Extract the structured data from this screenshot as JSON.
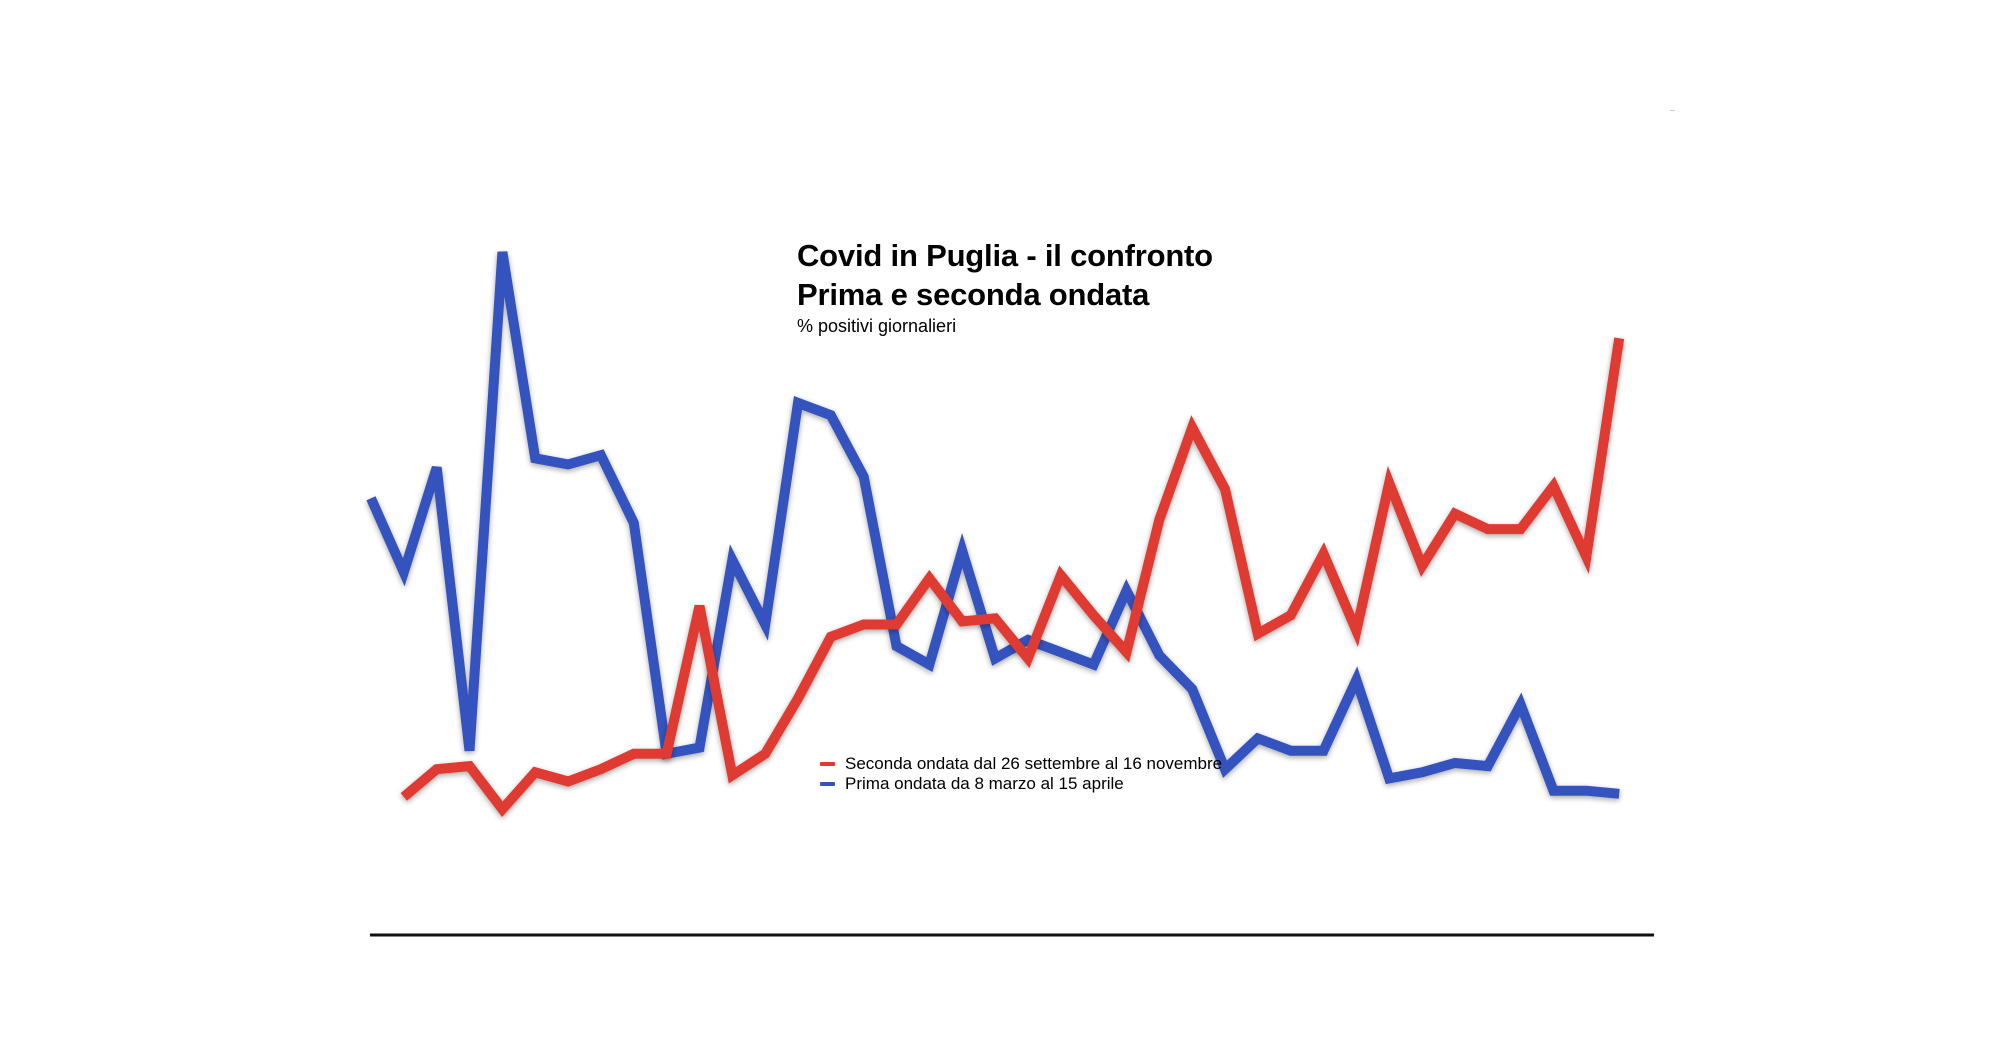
{
  "chart_data": {
    "type": "line",
    "title": "Covid in Puglia - il confronto",
    "title_line2": "Prima e seconda ondata",
    "subtitle": "% positivi giornalieri",
    "xlabel": "",
    "ylabel": "",
    "grid": false,
    "legend_position": "center-bottom",
    "x": [
      1,
      2,
      3,
      4,
      5,
      6,
      7,
      8,
      9,
      10,
      11,
      12,
      13,
      14,
      15,
      16,
      17,
      18,
      19,
      20,
      21,
      22,
      23,
      24,
      25,
      26,
      27,
      28,
      29,
      30,
      31,
      32,
      33,
      34,
      35,
      36,
      37,
      38,
      39,
      40
    ],
    "ylim": [
      0,
      23
    ],
    "series": [
      {
        "name": "Seconda ondata dal 26 settembre al 16 novembre",
        "color": "#e03a30",
        "values": [
          null,
          2.7,
          3.6,
          3.7,
          2.3,
          3.5,
          3.2,
          3.6,
          4.1,
          4.1,
          8.9,
          3.4,
          4.1,
          5.9,
          7.9,
          8.3,
          8.3,
          9.8,
          8.4,
          8.5,
          7.2,
          9.9,
          8.6,
          7.4,
          11.7,
          14.7,
          12.7,
          8.0,
          8.6,
          10.6,
          8.1,
          12.9,
          10.2,
          11.9,
          11.4,
          11.4,
          12.8,
          10.5,
          17.6,
          null
        ],
        "values_note": ""
      },
      {
        "name": "Prima ondata da 8 marzo al 15 aprile",
        "color": "#3553be",
        "values": [
          12.4,
          10.0,
          13.4,
          4.2,
          20.4,
          13.7,
          13.5,
          13.8,
          11.6,
          4.1,
          4.3,
          10.4,
          8.3,
          15.5,
          15.1,
          13.1,
          7.6,
          7.0,
          10.7,
          7.2,
          7.8,
          7.4,
          7.0,
          9.4,
          7.3,
          6.2,
          3.6,
          4.6,
          4.2,
          4.2,
          6.5,
          3.3,
          3.5,
          3.8,
          3.7,
          5.7,
          2.9,
          2.9,
          2.8,
          null
        ]
      }
    ]
  }
}
